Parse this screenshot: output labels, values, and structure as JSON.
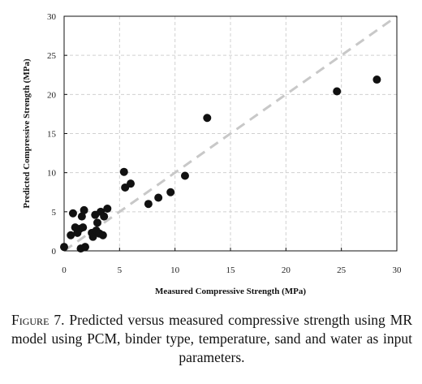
{
  "chart_data": {
    "type": "scatter",
    "xlabel": "Measured Compressive Strength (MPa)",
    "ylabel": "Predicted Compressive Strength (MPa)",
    "xlim": [
      0,
      30
    ],
    "ylim": [
      0,
      30
    ],
    "xticks": [
      "0",
      "5",
      "10",
      "15",
      "20",
      "25",
      "30"
    ],
    "yticks": [
      "0",
      "5",
      "10",
      "15",
      "20",
      "25",
      "30"
    ],
    "grid": true,
    "reference_line": "y = x (dashed)",
    "colors": {
      "points": "#111111",
      "reference": "#c8c8c8",
      "grid": "#d0d0d0"
    },
    "points": [
      {
        "x": 0.0,
        "y": 0.5
      },
      {
        "x": 0.6,
        "y": 2.0
      },
      {
        "x": 0.8,
        "y": 4.8
      },
      {
        "x": 1.0,
        "y": 3.0
      },
      {
        "x": 1.2,
        "y": 2.3
      },
      {
        "x": 1.4,
        "y": 2.8
      },
      {
        "x": 1.5,
        "y": 0.3
      },
      {
        "x": 1.6,
        "y": 4.4
      },
      {
        "x": 1.7,
        "y": 3.0
      },
      {
        "x": 1.8,
        "y": 5.2
      },
      {
        "x": 1.9,
        "y": 0.5
      },
      {
        "x": 2.5,
        "y": 2.3
      },
      {
        "x": 2.6,
        "y": 1.8
      },
      {
        "x": 2.8,
        "y": 4.6
      },
      {
        "x": 2.9,
        "y": 2.6
      },
      {
        "x": 3.0,
        "y": 3.6
      },
      {
        "x": 3.2,
        "y": 2.2
      },
      {
        "x": 3.3,
        "y": 5.0
      },
      {
        "x": 3.5,
        "y": 2.0
      },
      {
        "x": 3.6,
        "y": 4.4
      },
      {
        "x": 3.9,
        "y": 5.4
      },
      {
        "x": 5.4,
        "y": 10.1
      },
      {
        "x": 5.5,
        "y": 8.1
      },
      {
        "x": 6.0,
        "y": 8.6
      },
      {
        "x": 7.6,
        "y": 6.0
      },
      {
        "x": 8.5,
        "y": 6.8
      },
      {
        "x": 9.6,
        "y": 7.5
      },
      {
        "x": 10.9,
        "y": 9.6
      },
      {
        "x": 12.9,
        "y": 17.0
      },
      {
        "x": 24.6,
        "y": 20.4
      },
      {
        "x": 28.2,
        "y": 21.9
      }
    ]
  },
  "caption": {
    "label": "Figure 7.",
    "text": " Predicted versus measured compressive strength using MR model using PCM, binder type, temperature, sand and water as input parameters."
  }
}
